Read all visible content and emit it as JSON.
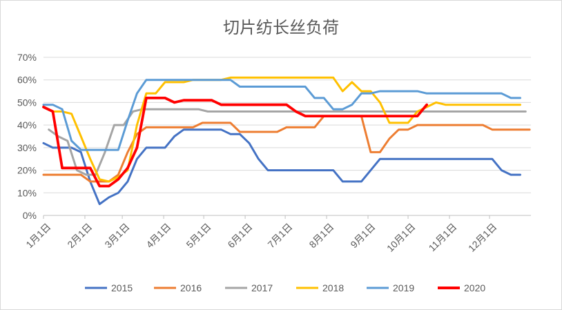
{
  "chart_data": {
    "type": "line",
    "title": "切片纺长丝负荷",
    "xlabel": "",
    "ylabel": "",
    "ylim": [
      0,
      70
    ],
    "y_ticks": [
      "0%",
      "10%",
      "20%",
      "30%",
      "40%",
      "50%",
      "60%",
      "70%"
    ],
    "x_ticks": [
      "1月1日",
      "2月1日",
      "3月1日",
      "4月1日",
      "5月1日",
      "6月1日",
      "7月1日",
      "8月1日",
      "9月1日",
      "10月1日",
      "11月1日",
      "12月1日"
    ],
    "x_unit": "day of year",
    "grid": true,
    "legend_position": "bottom",
    "series": [
      {
        "name": "2015",
        "color": "#4472c4",
        "x": [
          1,
          8,
          15,
          22,
          29,
          36,
          43,
          50,
          57,
          64,
          71,
          78,
          85,
          92,
          99,
          106,
          113,
          120,
          127,
          134,
          141,
          148,
          155,
          162,
          169,
          176,
          183,
          190,
          197,
          204,
          211,
          218,
          225,
          232,
          239,
          246,
          253,
          260,
          267,
          274,
          281,
          288,
          295,
          302,
          309,
          316,
          323,
          330,
          337,
          344,
          351,
          358
        ],
        "values": [
          32,
          30,
          30,
          30,
          28,
          15,
          5,
          8,
          10,
          15,
          25,
          30,
          30,
          30,
          35,
          38,
          38,
          38,
          38,
          38,
          36,
          36,
          32,
          25,
          20,
          20,
          20,
          20,
          20,
          20,
          20,
          20,
          15,
          15,
          15,
          20,
          25,
          25,
          25,
          25,
          25,
          25,
          25,
          25,
          25,
          25,
          25,
          25,
          25,
          20,
          18,
          18
        ]
      },
      {
        "name": "2016",
        "color": "#ed7d31",
        "x": [
          1,
          8,
          15,
          22,
          29,
          36,
          43,
          50,
          57,
          64,
          71,
          78,
          85,
          92,
          99,
          106,
          113,
          120,
          127,
          134,
          141,
          148,
          155,
          162,
          169,
          176,
          183,
          190,
          197,
          204,
          211,
          218,
          225,
          232,
          239,
          246,
          253,
          260,
          267,
          274,
          281,
          288,
          295,
          302,
          309,
          316,
          323,
          330,
          337,
          344,
          351,
          358,
          365
        ],
        "values": [
          18,
          18,
          18,
          18,
          18,
          15,
          15,
          15,
          18,
          28,
          36,
          39,
          39,
          39,
          39,
          39,
          39,
          41,
          41,
          41,
          41,
          37,
          37,
          37,
          37,
          37,
          39,
          39,
          39,
          39,
          44,
          44,
          44,
          44,
          44,
          28,
          28,
          34,
          38,
          38,
          40,
          40,
          40,
          40,
          40,
          40,
          40,
          40,
          38,
          38,
          38,
          38,
          38
        ]
      },
      {
        "name": "2017",
        "color": "#a5a5a5",
        "x": [
          5,
          12,
          19,
          26,
          33,
          40,
          47,
          54,
          61,
          68,
          75,
          82,
          89,
          96,
          103,
          110,
          117,
          124,
          131,
          138,
          145,
          152,
          159,
          166,
          173,
          180,
          187,
          194,
          201,
          208,
          215,
          222,
          229,
          236,
          243,
          250,
          257,
          264,
          271,
          278,
          285,
          292,
          299,
          306,
          313,
          320,
          327,
          334,
          341,
          348,
          355,
          362
        ],
        "values": [
          38,
          35,
          33,
          20,
          18,
          18,
          28,
          40,
          40,
          46,
          47,
          47,
          47,
          47,
          47,
          47,
          47,
          46,
          46,
          46,
          46,
          46,
          46,
          46,
          46,
          46,
          46,
          46,
          46,
          46,
          46,
          46,
          46,
          46,
          46,
          46,
          46,
          46,
          46,
          46,
          46,
          46,
          46,
          46,
          46,
          46,
          46,
          46,
          46,
          46,
          46,
          46
        ]
      },
      {
        "name": "2018",
        "color": "#ffc000",
        "x": [
          1,
          8,
          15,
          22,
          29,
          36,
          43,
          50,
          57,
          64,
          71,
          78,
          85,
          92,
          99,
          106,
          113,
          120,
          127,
          134,
          141,
          148,
          155,
          162,
          169,
          176,
          183,
          190,
          197,
          204,
          211,
          218,
          225,
          232,
          239,
          246,
          253,
          260,
          267,
          274,
          281,
          288,
          295,
          302,
          309,
          316,
          323,
          330,
          337,
          344,
          351,
          358
        ],
        "values": [
          48,
          46,
          46,
          45,
          35,
          25,
          16,
          15,
          17,
          20,
          40,
          54,
          54,
          59,
          59,
          59,
          60,
          60,
          60,
          60,
          61,
          61,
          61,
          61,
          61,
          61,
          61,
          61,
          61,
          61,
          61,
          61,
          55,
          59,
          55,
          55,
          50,
          41,
          41,
          41,
          46,
          48,
          50,
          49,
          49,
          49,
          49,
          49,
          49,
          49,
          49,
          49
        ]
      },
      {
        "name": "2019",
        "color": "#5b9bd5",
        "x": [
          1,
          8,
          15,
          22,
          29,
          36,
          43,
          50,
          57,
          64,
          71,
          78,
          85,
          92,
          99,
          106,
          113,
          120,
          127,
          134,
          141,
          148,
          155,
          162,
          169,
          176,
          183,
          190,
          197,
          204,
          211,
          218,
          225,
          232,
          239,
          246,
          253,
          260,
          267,
          274,
          281,
          288,
          295,
          302,
          309,
          316,
          323,
          330,
          337,
          344,
          351,
          358
        ],
        "values": [
          49,
          49,
          47,
          33,
          29,
          29,
          29,
          29,
          29,
          42,
          54,
          60,
          60,
          60,
          60,
          60,
          60,
          60,
          60,
          60,
          60,
          57,
          57,
          57,
          57,
          57,
          57,
          57,
          57,
          52,
          52,
          47,
          47,
          49,
          54,
          54,
          55,
          55,
          55,
          55,
          55,
          54,
          54,
          54,
          54,
          54,
          54,
          54,
          54,
          54,
          52,
          52
        ]
      },
      {
        "name": "2020",
        "color": "#ff0000",
        "x": [
          1,
          8,
          15,
          22,
          29,
          36,
          43,
          50,
          57,
          64,
          71,
          78,
          85,
          92,
          99,
          106,
          113,
          120,
          127,
          134,
          141,
          148,
          155,
          162,
          169,
          176,
          183,
          190,
          197,
          204,
          211,
          218,
          225,
          232,
          239,
          246,
          253,
          260,
          267,
          274,
          281,
          288
        ],
        "values": [
          48,
          46,
          21,
          21,
          21,
          21,
          13,
          13,
          16,
          21,
          30,
          52,
          52,
          52,
          50,
          51,
          51,
          51,
          51,
          49,
          49,
          49,
          49,
          49,
          49,
          49,
          49,
          46,
          44,
          44,
          44,
          44,
          44,
          44,
          44,
          44,
          44,
          44,
          44,
          44,
          44,
          49
        ]
      }
    ]
  }
}
